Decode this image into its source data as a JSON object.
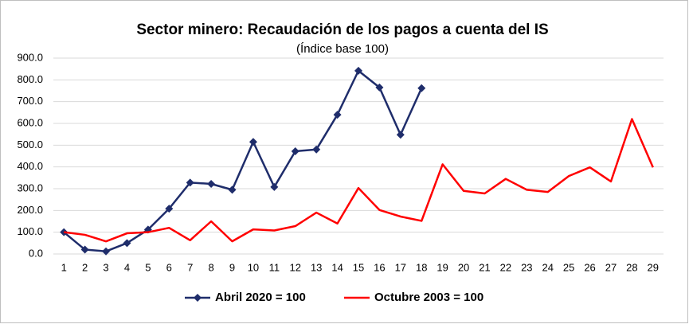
{
  "chart_data": {
    "type": "line",
    "title": "Sector minero: Recaudación de los pagos a cuenta del IS",
    "subtitle": "(Índice base 100)",
    "categories": [
      "1",
      "2",
      "3",
      "4",
      "5",
      "6",
      "7",
      "8",
      "9",
      "10",
      "11",
      "12",
      "13",
      "14",
      "15",
      "16",
      "17",
      "18",
      "19",
      "20",
      "21",
      "22",
      "23",
      "24",
      "25",
      "26",
      "27",
      "28",
      "29"
    ],
    "series": [
      {
        "name": "Abril 2020 = 100",
        "color": "#1f2d6b",
        "marker": "diamond",
        "values": [
          100,
          20,
          12,
          50,
          112,
          208,
          328,
          322,
          295,
          515,
          308,
          472,
          480,
          640,
          842,
          765,
          548,
          762,
          null,
          null,
          null,
          null,
          null,
          null,
          null,
          null,
          null,
          null,
          null
        ]
      },
      {
        "name": "Octubre 2003 = 100",
        "color": "#ff0000",
        "marker": null,
        "values": [
          100,
          88,
          58,
          95,
          100,
          120,
          63,
          150,
          58,
          113,
          108,
          128,
          190,
          140,
          303,
          202,
          172,
          152,
          412,
          290,
          278,
          345,
          295,
          285,
          358,
          398,
          333,
          620,
          398
        ]
      }
    ],
    "ylim": [
      0,
      900
    ],
    "yticks": [
      {
        "value": 0,
        "label": "0.0"
      },
      {
        "value": 100,
        "label": "100.0"
      },
      {
        "value": 200,
        "label": "200.0"
      },
      {
        "value": 300,
        "label": "300.0"
      },
      {
        "value": 400,
        "label": "400.0"
      },
      {
        "value": 500,
        "label": "500.0"
      },
      {
        "value": 600,
        "label": "600.0"
      },
      {
        "value": 700,
        "label": "700.0"
      },
      {
        "value": 800,
        "label": "800.0"
      },
      {
        "value": 900,
        "label": "900.0"
      }
    ],
    "grid": true,
    "legend": "bottom"
  }
}
